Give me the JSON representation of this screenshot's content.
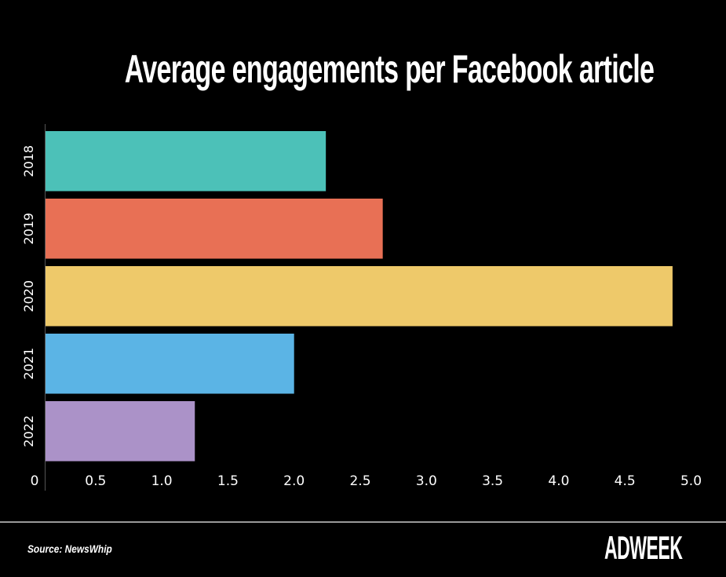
{
  "chart_data": {
    "type": "bar",
    "orientation": "horizontal",
    "title": "Average engagements per Facebook article",
    "categories": [
      "2018",
      "2019",
      "2020",
      "2021",
      "2022"
    ],
    "values": [
      2.24,
      2.67,
      4.86,
      2.0,
      1.25
    ],
    "colors": [
      "#4cc1b8",
      "#e87055",
      "#eec96a",
      "#5bb4e5",
      "#ab92c8"
    ],
    "xlim": [
      0,
      5.0
    ],
    "xticks": [
      "0",
      "0.5",
      "1.0",
      "1.5",
      "2.0",
      "2.5",
      "3.0",
      "3.5",
      "4.0",
      "4.5",
      "5.0"
    ],
    "xlabel": "",
    "ylabel": "",
    "grid": false,
    "legend": "none"
  },
  "footer": {
    "source": "Source: NewsWhip",
    "logo": "ADWEEK"
  }
}
